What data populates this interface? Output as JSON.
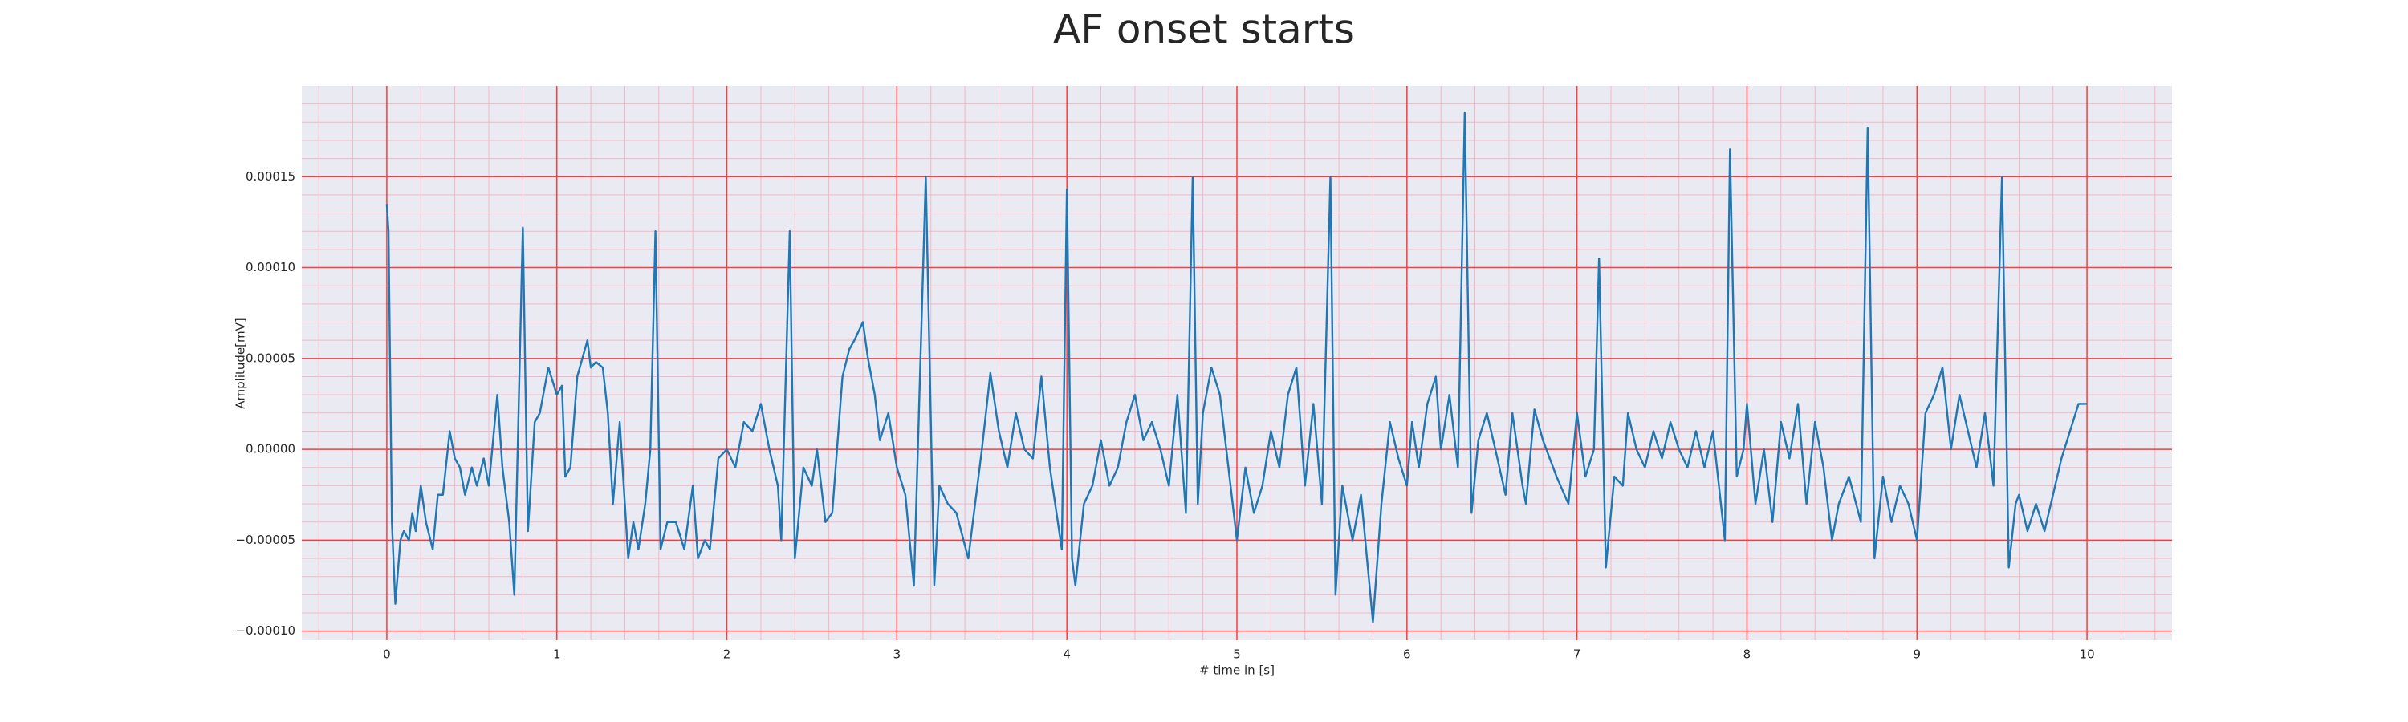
{
  "chart_data": {
    "type": "line",
    "title": "AF onset starts",
    "xlabel": "# time in [s]",
    "ylabel": "Amplitude[mV]",
    "xlim": [
      -0.5,
      10.5
    ],
    "ylim": [
      -0.000105,
      0.0002
    ],
    "xticks": [
      0,
      1,
      2,
      3,
      4,
      5,
      6,
      7,
      8,
      9,
      10
    ],
    "yticks": [
      {
        "value": -0.0001,
        "label": "−0.00010"
      },
      {
        "value": -5e-05,
        "label": "−0.00005"
      },
      {
        "value": 0,
        "label": "0.00000"
      },
      {
        "value": 5e-05,
        "label": "0.00005"
      },
      {
        "value": 0.0001,
        "label": "0.00010"
      },
      {
        "value": 0.00015,
        "label": "0.00015"
      }
    ],
    "xminorticks": [
      -0.4,
      -0.2,
      0.2,
      0.4,
      0.6,
      0.8,
      1.2,
      1.4,
      1.6,
      1.8,
      2.2,
      2.4,
      2.6,
      2.8,
      3.2,
      3.4,
      3.6,
      3.8,
      4.2,
      4.4,
      4.6,
      4.8,
      5.2,
      5.4,
      5.6,
      5.8,
      6.2,
      6.4,
      6.6,
      6.8,
      7.2,
      7.4,
      7.6,
      7.8,
      8.2,
      8.4,
      8.6,
      8.8,
      9.2,
      9.4,
      9.6,
      9.8,
      10.2,
      10.4
    ],
    "yminorticks": [
      -9e-05,
      -8e-05,
      -7e-05,
      -6e-05,
      -4e-05,
      -3e-05,
      -2e-05,
      -1e-05,
      1e-05,
      2e-05,
      3e-05,
      4e-05,
      6e-05,
      7e-05,
      8e-05,
      9e-05,
      0.00011,
      0.00012,
      0.00013,
      0.00014,
      0.00016,
      0.00017,
      0.00018,
      0.00019
    ],
    "grid": true,
    "grid_color": "#ff3b3b",
    "minor_grid_color": "#f4b6c4",
    "background": "#eaeaf2",
    "series": [
      {
        "color": "#1f77b4",
        "x": [
          0,
          0.01,
          0.03,
          0.05,
          0.08,
          0.1,
          0.13,
          0.15,
          0.17,
          0.2,
          0.23,
          0.27,
          0.3,
          0.33,
          0.37,
          0.4,
          0.43,
          0.46,
          0.5,
          0.53,
          0.57,
          0.6,
          0.65,
          0.68,
          0.72,
          0.75,
          0.8,
          0.83,
          0.87,
          0.9,
          0.95,
          1.0,
          1.03,
          1.05,
          1.08,
          1.12,
          1.15,
          1.18,
          1.2,
          1.23,
          1.27,
          1.3,
          1.33,
          1.37,
          1.42,
          1.45,
          1.48,
          1.52,
          1.55,
          1.58,
          1.61,
          1.65,
          1.7,
          1.75,
          1.8,
          1.83,
          1.87,
          1.9,
          1.95,
          2.0,
          2.05,
          2.1,
          2.15,
          2.2,
          2.25,
          2.3,
          2.32,
          2.37,
          2.4,
          2.45,
          2.5,
          2.53,
          2.58,
          2.62,
          2.68,
          2.72,
          2.75,
          2.8,
          2.83,
          2.87,
          2.9,
          2.95,
          3.0,
          3.05,
          3.1,
          3.17,
          3.22,
          3.25,
          3.3,
          3.35,
          3.42,
          3.5,
          3.55,
          3.6,
          3.65,
          3.7,
          3.75,
          3.8,
          3.85,
          3.9,
          3.97,
          4.0,
          4.03,
          4.05,
          4.1,
          4.15,
          4.2,
          4.25,
          4.3,
          4.35,
          4.4,
          4.45,
          4.5,
          4.55,
          4.6,
          4.65,
          4.7,
          4.74,
          4.77,
          4.8,
          4.85,
          4.9,
          4.95,
          5.0,
          5.05,
          5.1,
          5.15,
          5.2,
          5.25,
          5.3,
          5.35,
          5.4,
          5.45,
          5.5,
          5.55,
          5.58,
          5.62,
          5.68,
          5.73,
          5.8,
          5.85,
          5.9,
          5.95,
          6.0,
          6.03,
          6.07,
          6.12,
          6.17,
          6.2,
          6.25,
          6.3,
          6.34,
          6.38,
          6.42,
          6.47,
          6.52,
          6.58,
          6.62,
          6.68,
          6.7,
          6.75,
          6.8,
          6.88,
          6.95,
          7.0,
          7.05,
          7.1,
          7.13,
          7.17,
          7.22,
          7.27,
          7.3,
          7.35,
          7.4,
          7.45,
          7.5,
          7.55,
          7.6,
          7.65,
          7.7,
          7.75,
          7.8,
          7.87,
          7.9,
          7.94,
          7.98,
          8.0,
          8.05,
          8.1,
          8.15,
          8.2,
          8.25,
          8.3,
          8.35,
          8.4,
          8.45,
          8.5,
          8.54,
          8.6,
          8.67,
          8.71,
          8.75,
          8.8,
          8.85,
          8.9,
          8.95,
          9.0,
          9.05,
          9.1,
          9.15,
          9.2,
          9.25,
          9.3,
          9.35,
          9.4,
          9.45,
          9.5,
          9.54,
          9.58,
          9.6,
          9.65,
          9.7,
          9.75,
          9.8,
          9.85,
          9.9,
          9.95,
          10.0
        ],
        "values": [
          0.000135,
          0.00012,
          -4e-05,
          -8.5e-05,
          -5e-05,
          -4.5e-05,
          -5e-05,
          -3.5e-05,
          -4.5e-05,
          -2e-05,
          -4e-05,
          -5.5e-05,
          -2.5e-05,
          -2.5e-05,
          1e-05,
          -5e-06,
          -1e-05,
          -2.5e-05,
          -1e-05,
          -2e-05,
          -5e-06,
          -2e-05,
          3e-05,
          -1e-05,
          -4e-05,
          -8e-05,
          0.000122,
          -4.5e-05,
          1.5e-05,
          2e-05,
          4.5e-05,
          3e-05,
          3.5e-05,
          -1.5e-05,
          -1e-05,
          4e-05,
          5e-05,
          6e-05,
          4.5e-05,
          4.8e-05,
          4.5e-05,
          2e-05,
          -3e-05,
          1.5e-05,
          -6e-05,
          -4e-05,
          -5.5e-05,
          -3e-05,
          0,
          0.00012,
          -5.5e-05,
          -4e-05,
          -4e-05,
          -5.5e-05,
          -2e-05,
          -6e-05,
          -5e-05,
          -5.5e-05,
          -5e-06,
          0,
          -1e-05,
          1.5e-05,
          1e-05,
          2.5e-05,
          0,
          -2e-05,
          -5e-05,
          0.00012,
          -6e-05,
          -1e-05,
          -2e-05,
          0,
          -4e-05,
          -3.5e-05,
          4e-05,
          5.5e-05,
          6e-05,
          7e-05,
          5e-05,
          3e-05,
          5e-06,
          2e-05,
          -1e-05,
          -2.5e-05,
          -7.5e-05,
          0.00015,
          -7.5e-05,
          -2e-05,
          -3e-05,
          -3.5e-05,
          -6e-05,
          0,
          4.2e-05,
          1e-05,
          -1e-05,
          2e-05,
          0,
          -5e-06,
          4e-05,
          -1e-05,
          -5.5e-05,
          0.000143,
          -6e-05,
          -7.5e-05,
          -3e-05,
          -2e-05,
          5e-06,
          -2e-05,
          -1e-05,
          1.5e-05,
          3e-05,
          5e-06,
          1.5e-05,
          0,
          -2e-05,
          3e-05,
          -3.5e-05,
          0.00015,
          -3e-05,
          2e-05,
          4.5e-05,
          3e-05,
          -1e-05,
          -5e-05,
          -1e-05,
          -3.5e-05,
          -2e-05,
          1e-05,
          -1e-05,
          3e-05,
          4.5e-05,
          -2e-05,
          2.5e-05,
          -3e-05,
          0.00015,
          -8e-05,
          -2e-05,
          -5e-05,
          -2.5e-05,
          -9.5e-05,
          -3e-05,
          1.5e-05,
          -5e-06,
          -2e-05,
          1.5e-05,
          -1e-05,
          2.5e-05,
          4e-05,
          0,
          3e-05,
          -1e-05,
          0.000185,
          -3.5e-05,
          5e-06,
          2e-05,
          0,
          -2.5e-05,
          2e-05,
          -2e-05,
          -3e-05,
          2.2e-05,
          5e-06,
          -1.5e-05,
          -3e-05,
          2e-05,
          -1.5e-05,
          0,
          0.000105,
          -6.5e-05,
          -1.5e-05,
          -2e-05,
          2e-05,
          0,
          -1e-05,
          1e-05,
          -5e-06,
          1.5e-05,
          0,
          -1e-05,
          1e-05,
          -1e-05,
          1e-05,
          -5e-05,
          0.000165,
          -1.5e-05,
          0,
          2.5e-05,
          -3e-05,
          0,
          -4e-05,
          1.5e-05,
          -5e-06,
          2.5e-05,
          -3e-05,
          1.5e-05,
          -1e-05,
          -5e-05,
          -3e-05,
          -1.5e-05,
          -4e-05,
          0.000177,
          -6e-05,
          -1.5e-05,
          -4e-05,
          -2e-05,
          -3e-05,
          -5e-05,
          2e-05,
          3e-05,
          4.5e-05,
          0,
          3e-05,
          1e-05,
          -1e-05,
          2e-05,
          -2e-05,
          0.00015,
          -6.5e-05,
          -3e-05,
          -2.5e-05,
          -4.5e-05,
          -3e-05,
          -4.5e-05,
          -2.5e-05,
          -5e-06,
          1e-05,
          2.5e-05,
          2.5e-05
        ]
      }
    ]
  }
}
